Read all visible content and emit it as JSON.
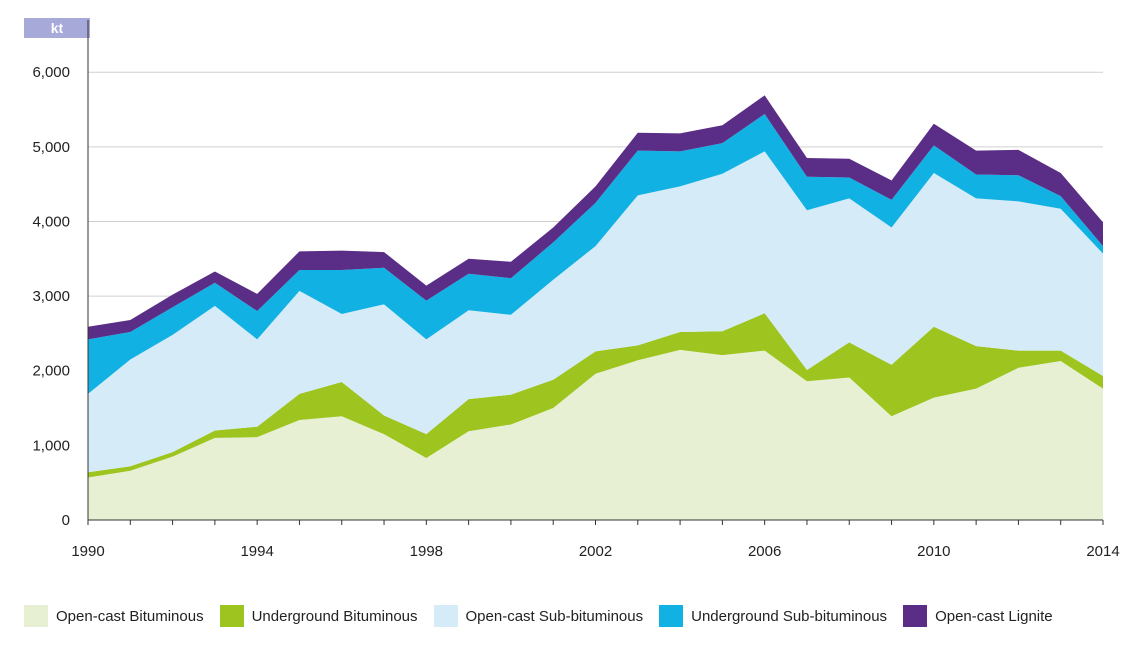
{
  "unit_label": "kt",
  "chart_data": {
    "type": "area",
    "stacked": true,
    "x": [
      1990,
      1991,
      1992,
      1993,
      1994,
      1995,
      1996,
      1997,
      1998,
      1999,
      2000,
      2001,
      2002,
      2003,
      2004,
      2005,
      2006,
      2007,
      2008,
      2009,
      2010,
      2011,
      2012,
      2013,
      2014
    ],
    "x_tick_labels": [
      "1990",
      "1994",
      "1998",
      "2002",
      "2006",
      "2010",
      "2014"
    ],
    "y_tick_labels": [
      "0",
      "1,000",
      "2,000",
      "3,000",
      "4,000",
      "5,000",
      "6,000"
    ],
    "ylim": [
      0,
      6700
    ],
    "ylabel": "kt",
    "grid": true,
    "legend_position": "bottom",
    "series": [
      {
        "name": "Open-cast Bituminous",
        "color": "#e8f0d4",
        "values": [
          570,
          660,
          850,
          1100,
          1110,
          1340,
          1390,
          1150,
          830,
          1190,
          1280,
          1500,
          1960,
          2140,
          2280,
          2210,
          2270,
          1860,
          1910,
          1390,
          1640,
          1760,
          2040,
          2130,
          1760
        ]
      },
      {
        "name": "Underground Bituminous",
        "color": "#9dc41f",
        "values": [
          70,
          60,
          60,
          100,
          140,
          350,
          460,
          250,
          320,
          430,
          400,
          380,
          300,
          200,
          240,
          320,
          500,
          150,
          470,
          690,
          950,
          570,
          230,
          140,
          170
        ]
      },
      {
        "name": "Open-cast Sub-bituminous",
        "color": "#d5ebf7",
        "values": [
          1050,
          1430,
          1570,
          1670,
          1170,
          1380,
          910,
          1490,
          1270,
          1190,
          1070,
          1340,
          1410,
          2010,
          1950,
          2110,
          2170,
          2140,
          1930,
          1840,
          2060,
          1980,
          2000,
          1900,
          1640
        ]
      },
      {
        "name": "Underground Sub-bituminous",
        "color": "#12b1e3",
        "values": [
          730,
          370,
          370,
          310,
          380,
          280,
          590,
          490,
          520,
          490,
          490,
          500,
          580,
          600,
          470,
          410,
          500,
          450,
          280,
          370,
          370,
          320,
          350,
          170,
          100
        ]
      },
      {
        "name": "Open-cast Lignite",
        "color": "#5a2d86",
        "values": [
          170,
          160,
          170,
          150,
          230,
          250,
          260,
          210,
          200,
          200,
          220,
          200,
          220,
          240,
          240,
          240,
          250,
          250,
          250,
          260,
          290,
          320,
          340,
          310,
          320
        ]
      }
    ]
  }
}
